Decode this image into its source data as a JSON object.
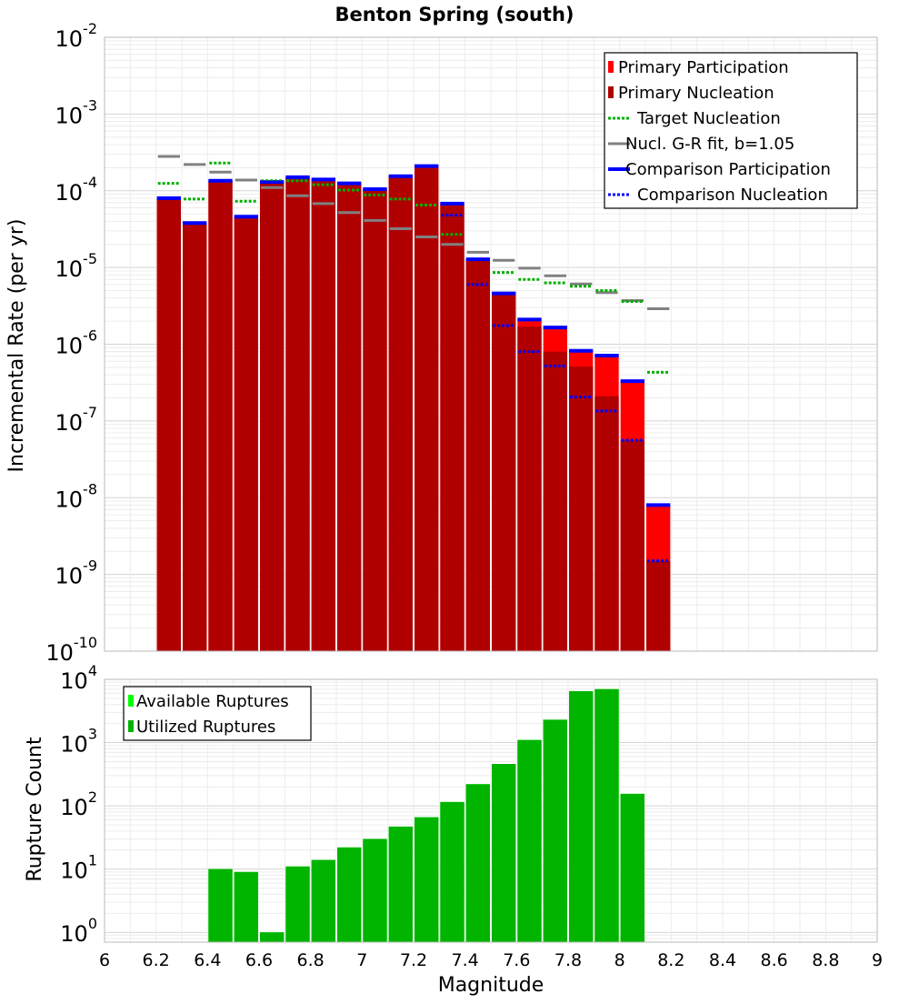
{
  "chart_data": [
    {
      "type": "bar",
      "title": "Benton Spring (south)",
      "xlabel": "",
      "ylabel": "Incremental Rate (per yr)",
      "yscale": "log",
      "ylim": [
        1e-10,
        0.01
      ],
      "xlim": [
        6,
        9
      ],
      "bin_width": 0.1,
      "grid": true,
      "y_ticks": [
        {
          "base": "10",
          "exp": "-10"
        },
        {
          "base": "10",
          "exp": "-9"
        },
        {
          "base": "10",
          "exp": "-8"
        },
        {
          "base": "10",
          "exp": "-7"
        },
        {
          "base": "10",
          "exp": "-6"
        },
        {
          "base": "10",
          "exp": "-5"
        },
        {
          "base": "10",
          "exp": "-4"
        },
        {
          "base": "10",
          "exp": "-3"
        },
        {
          "base": "10",
          "exp": "-2"
        }
      ],
      "legend_position": "top-right",
      "legend": [
        {
          "label": "Primary Participation",
          "symbol": "bar",
          "color": "#ff0000"
        },
        {
          "label": "Primary Nucleation",
          "symbol": "bar",
          "color": "#b00000"
        },
        {
          "label": "Target Nucleation",
          "symbol": "dotted",
          "color": "#00b000"
        },
        {
          "label": "Nucl. G-R fit, b=1.05",
          "symbol": "solid",
          "color": "#808080"
        },
        {
          "label": "Comparison Participation",
          "symbol": "thick",
          "color": "#0000ff"
        },
        {
          "label": "Comparison Nucleation",
          "symbol": "dotted",
          "color": "#0000ff"
        }
      ],
      "bins": [
        6.25,
        6.35,
        6.45,
        6.55,
        6.65,
        6.75,
        6.85,
        6.95,
        7.05,
        7.15,
        7.25,
        7.35,
        7.45,
        7.55,
        7.65,
        7.75,
        7.85,
        7.95,
        8.05,
        8.15
      ],
      "primary_participation": [
        8e-05,
        3.8e-05,
        0.000135,
        4.6e-05,
        0.00013,
        0.00015,
        0.00014,
        0.000125,
        0.000105,
        0.000155,
        0.00021,
        6.8e-05,
        1.28e-05,
        4.6e-06,
        2.1e-06,
        1.65e-06,
        8.2e-07,
        7.1e-07,
        3.3e-07,
        8e-09
      ],
      "primary_nucleation": [
        8e-05,
        3.8e-05,
        0.000135,
        4.6e-05,
        0.00013,
        0.00015,
        0.00014,
        0.000125,
        0.000105,
        0.000155,
        0.00021,
        6.8e-05,
        1.28e-05,
        4.6e-06,
        1.7e-06,
        8e-07,
        5.1e-07,
        2.1e-07,
        5.6e-08,
        1.5e-09
      ],
      "target_nucleation": [
        {
          "x": 6.25,
          "y": 0.000125
        },
        {
          "x": 6.35,
          "y": 7.8e-05
        },
        {
          "x": 6.45,
          "y": 0.00023
        },
        {
          "x": 6.55,
          "y": 7.3e-05
        },
        {
          "x": 6.65,
          "y": 0.000135
        },
        {
          "x": 6.75,
          "y": 0.000135
        },
        {
          "x": 6.85,
          "y": 0.00012
        },
        {
          "x": 6.95,
          "y": 0.000102
        },
        {
          "x": 7.05,
          "y": 8.8e-05
        },
        {
          "x": 7.15,
          "y": 7.8e-05
        },
        {
          "x": 7.25,
          "y": 6.5e-05
        },
        {
          "x": 7.35,
          "y": 2.7e-05
        },
        {
          "x": 7.55,
          "y": 8.6e-06
        },
        {
          "x": 7.65,
          "y": 7e-06
        },
        {
          "x": 7.75,
          "y": 6.3e-06
        },
        {
          "x": 7.85,
          "y": 5.7e-06
        },
        {
          "x": 7.95,
          "y": 5e-06
        },
        {
          "x": 8.05,
          "y": 3.6e-06
        },
        {
          "x": 8.15,
          "y": 4.3e-07
        }
      ],
      "gr_fit": [
        0.00028,
        0.00022,
        0.000175,
        0.000138,
        0.00011,
        8.6e-05,
        6.8e-05,
        5.2e-05,
        4.1e-05,
        3.2e-05,
        2.5e-05,
        2e-05,
        1.58e-05,
        1.24e-05,
        9.8e-06,
        7.8e-06,
        6.1e-06,
        4.7e-06,
        3.7e-06,
        2.9e-06
      ],
      "comparison_participation": [
        8e-05,
        3.8e-05,
        0.000135,
        4.6e-05,
        0.00013,
        0.00015,
        0.00014,
        0.000125,
        0.000105,
        0.000155,
        0.00021,
        6.8e-05,
        1.28e-05,
        4.6e-06,
        2.1e-06,
        1.65e-06,
        8.2e-07,
        7.1e-07,
        3.3e-07,
        8e-09
      ],
      "comparison_nucleation": [
        8e-05,
        3.8e-05,
        0.000135,
        4.6e-05,
        0.00013,
        0.00015,
        0.00014,
        0.000125,
        0.000105,
        0.000155,
        0.00021,
        4.8e-05,
        6e-06,
        1.75e-06,
        8e-07,
        5.2e-07,
        2.05e-07,
        1.35e-07,
        5.6e-08,
        1.5e-09
      ]
    },
    {
      "type": "bar",
      "title": "",
      "xlabel": "Magnitude",
      "ylabel": "Rupture Count",
      "yscale": "log",
      "ylim": [
        0.7,
        10000
      ],
      "xlim": [
        6,
        9
      ],
      "bin_width": 0.1,
      "grid": true,
      "x_ticks": [
        "6",
        "6.2",
        "6.4",
        "6.6",
        "6.8",
        "7",
        "7.2",
        "7.4",
        "7.6",
        "7.8",
        "8",
        "8.2",
        "8.4",
        "8.6",
        "8.8",
        "9"
      ],
      "y_ticks": [
        {
          "base": "10",
          "exp": "0"
        },
        {
          "base": "10",
          "exp": "1"
        },
        {
          "base": "10",
          "exp": "2"
        },
        {
          "base": "10",
          "exp": "3"
        },
        {
          "base": "10",
          "exp": "4"
        }
      ],
      "legend_position": "top-left",
      "legend": [
        {
          "label": "Available Ruptures",
          "symbol": "bar",
          "color": "#00ff00"
        },
        {
          "label": "Utilized Ruptures",
          "symbol": "bar",
          "color": "#00b400"
        }
      ],
      "bins": [
        6.45,
        6.55,
        6.65,
        6.75,
        6.85,
        6.95,
        7.05,
        7.15,
        7.25,
        7.35,
        7.45,
        7.55,
        7.65,
        7.75,
        7.85,
        7.95,
        8.05
      ],
      "available": [
        10,
        9,
        1,
        11,
        14,
        22,
        30,
        47,
        66,
        115,
        220,
        460,
        1100,
        2300,
        6500,
        7000,
        155
      ],
      "utilized": [
        10,
        9,
        1,
        11,
        14,
        22,
        30,
        47,
        66,
        115,
        220,
        460,
        1100,
        2300,
        6500,
        7000,
        155
      ]
    }
  ]
}
